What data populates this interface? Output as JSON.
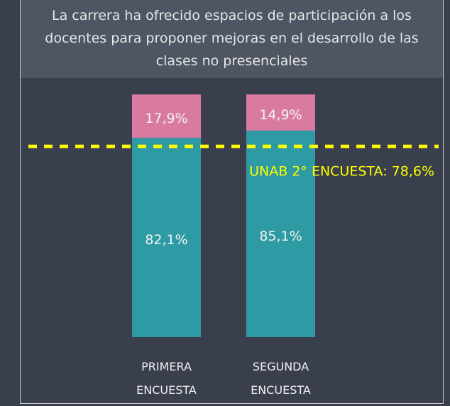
{
  "chart_data": {
    "type": "stacked_bar",
    "title": "La carrera ha ofrecido espacios de participación a los docentes para proponer mejoras en el desarrollo de las clases no presenciales",
    "categories": [
      "PRIMERA ENCUESTA",
      "SEGUNDA ENCUESTA"
    ],
    "series": [
      {
        "color": "#2e9aa3",
        "values": [
          82.1,
          85.1
        ],
        "value_labels": [
          "82,1%",
          "85,1%"
        ]
      },
      {
        "color": "#d97ba0",
        "values": [
          17.9,
          14.9
        ],
        "value_labels": [
          "17,9%",
          "14,9%"
        ]
      }
    ],
    "ylim": [
      0,
      100
    ],
    "reference_line": {
      "value": 78.6,
      "label": "UNAB 2° ENCUESTA: 78,6%",
      "color": "#ffff00"
    }
  }
}
